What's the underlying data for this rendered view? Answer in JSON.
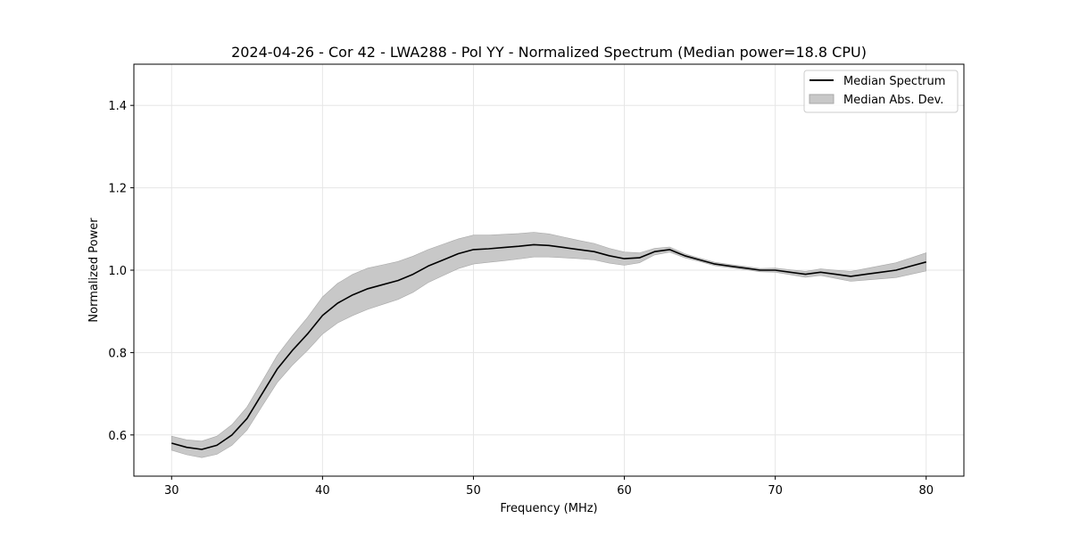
{
  "chart_data": {
    "type": "line",
    "title": "2024-04-26 - Cor 42 - LWA288 - Pol YY - Normalized Spectrum (Median power=18.8 CPU)",
    "xlabel": "Frequency (MHz)",
    "ylabel": "Normalized Power",
    "xlim": [
      27.5,
      82.5
    ],
    "ylim": [
      0.5,
      1.5
    ],
    "xticks": [
      30,
      40,
      50,
      60,
      70,
      80
    ],
    "yticks": [
      0.6,
      0.8,
      1.0,
      1.2,
      1.4
    ],
    "xtick_labels": [
      "30",
      "40",
      "50",
      "60",
      "70",
      "80"
    ],
    "ytick_labels": [
      "0.6",
      "0.8",
      "1.0",
      "1.2",
      "1.4"
    ],
    "grid": true,
    "legend_position": "top-right",
    "legend": [
      "Median Spectrum",
      "Median Abs. Dev."
    ],
    "colors": {
      "line": "#000000",
      "band": "#c8c8c8",
      "band_edge": "#a8a8a8",
      "grid": "#e6e6e6"
    },
    "series": [
      {
        "name": "Median Spectrum",
        "x": [
          30,
          31,
          32,
          33,
          34,
          35,
          36,
          37,
          38,
          39,
          40,
          41,
          42,
          43,
          44,
          45,
          46,
          47,
          48,
          49,
          50,
          51,
          52,
          53,
          54,
          55,
          56,
          57,
          58,
          59,
          60,
          61,
          62,
          63,
          64,
          65,
          66,
          67,
          68,
          69,
          70,
          71,
          72,
          73,
          74,
          75,
          76,
          77,
          78,
          79,
          80
        ],
        "values": [
          0.58,
          0.57,
          0.565,
          0.575,
          0.6,
          0.64,
          0.7,
          0.76,
          0.805,
          0.845,
          0.89,
          0.92,
          0.94,
          0.955,
          0.965,
          0.975,
          0.99,
          1.01,
          1.025,
          1.04,
          1.05,
          1.052,
          1.055,
          1.058,
          1.062,
          1.06,
          1.055,
          1.05,
          1.045,
          1.035,
          1.028,
          1.03,
          1.045,
          1.05,
          1.035,
          1.025,
          1.015,
          1.01,
          1.005,
          1.0,
          1.0,
          0.995,
          0.99,
          0.995,
          0.99,
          0.985,
          0.99,
          0.995,
          1.0,
          1.01,
          1.02
        ]
      },
      {
        "name": "Median Abs. Dev.",
        "x": [
          30,
          31,
          32,
          33,
          34,
          35,
          36,
          37,
          38,
          39,
          40,
          41,
          42,
          43,
          44,
          45,
          46,
          47,
          48,
          49,
          50,
          51,
          52,
          53,
          54,
          55,
          56,
          57,
          58,
          59,
          60,
          61,
          62,
          63,
          64,
          65,
          66,
          67,
          68,
          69,
          70,
          71,
          72,
          73,
          74,
          75,
          76,
          77,
          78,
          79,
          80
        ],
        "values": [
          0.017,
          0.018,
          0.02,
          0.022,
          0.025,
          0.028,
          0.03,
          0.033,
          0.036,
          0.04,
          0.045,
          0.048,
          0.05,
          0.05,
          0.048,
          0.046,
          0.044,
          0.04,
          0.038,
          0.036,
          0.035,
          0.033,
          0.032,
          0.031,
          0.03,
          0.028,
          0.025,
          0.022,
          0.02,
          0.018,
          0.016,
          0.012,
          0.008,
          0.006,
          0.005,
          0.004,
          0.004,
          0.004,
          0.004,
          0.004,
          0.005,
          0.006,
          0.007,
          0.008,
          0.01,
          0.012,
          0.014,
          0.016,
          0.018,
          0.02,
          0.022
        ]
      }
    ]
  }
}
